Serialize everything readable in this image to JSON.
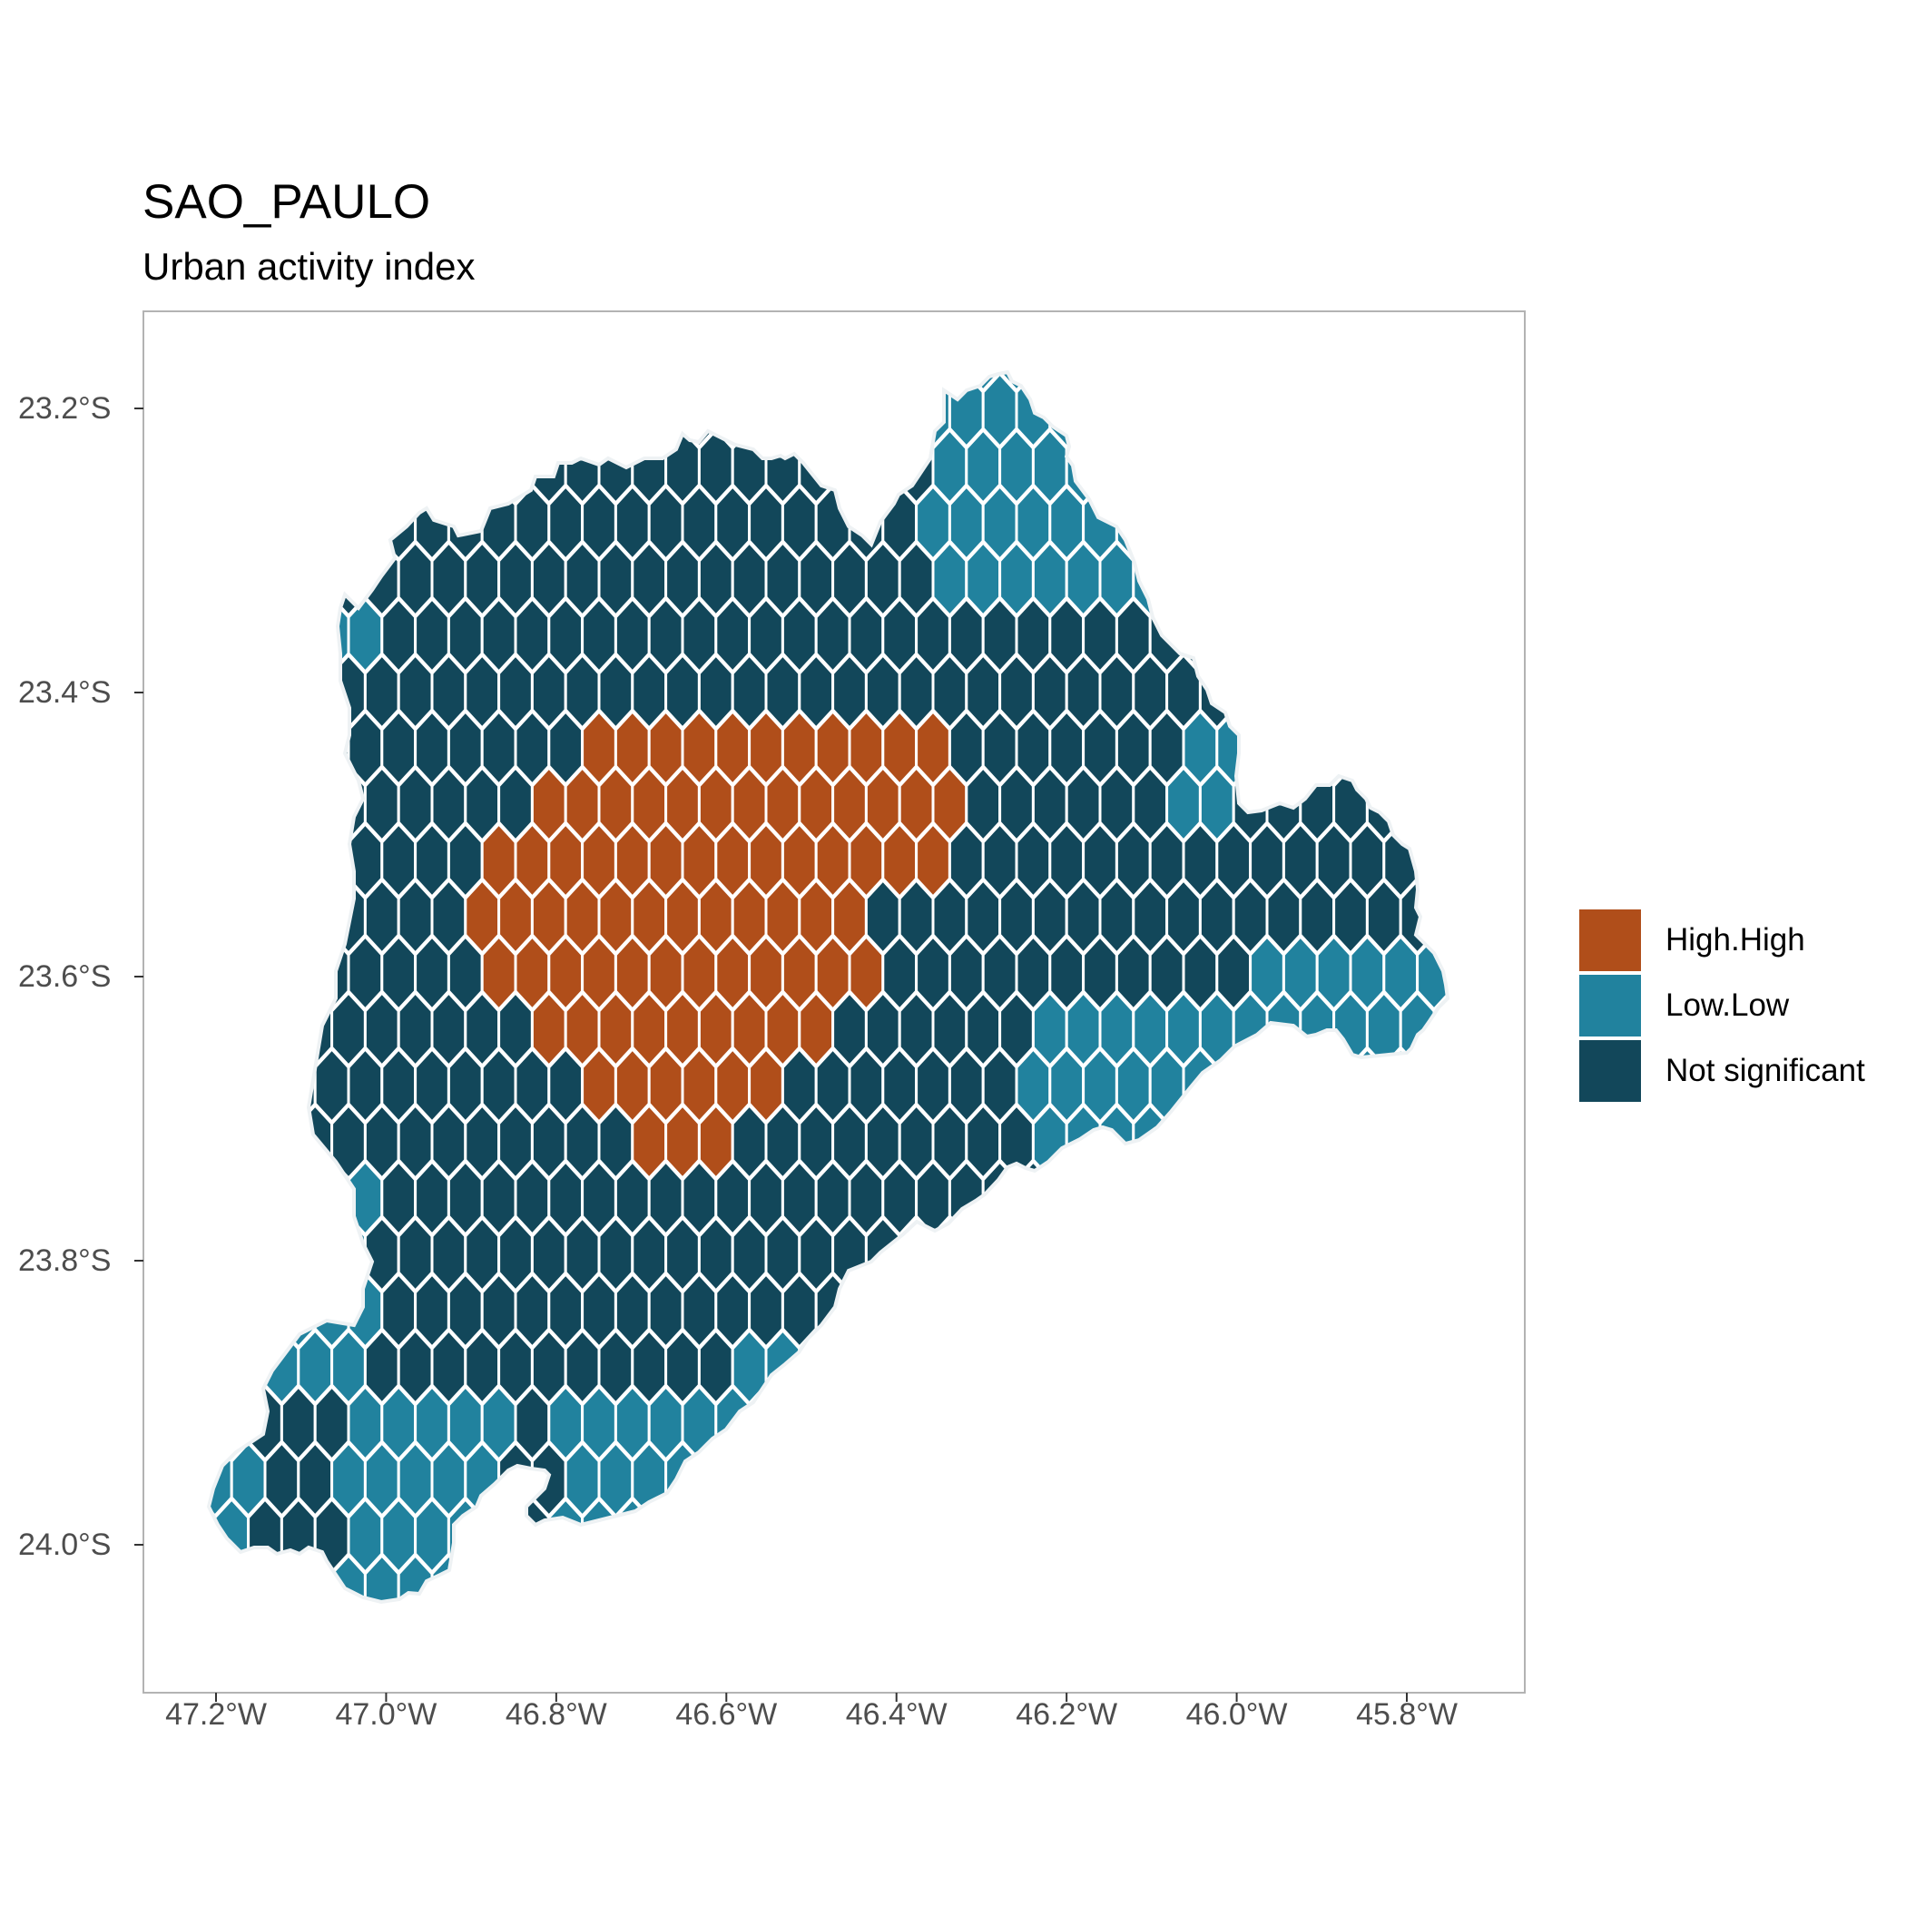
{
  "title": "SAO_PAULO",
  "subtitle": "Urban activity index",
  "axes": {
    "y_ticks": [
      {
        "label": "23.2°S",
        "value": 23.2
      },
      {
        "label": "23.4°S",
        "value": 23.4
      },
      {
        "label": "23.6°S",
        "value": 23.6
      },
      {
        "label": "23.8°S",
        "value": 23.8
      },
      {
        "label": "24.0°S",
        "value": 24.0
      }
    ],
    "x_ticks": [
      {
        "label": "47.2°W",
        "value": 47.2
      },
      {
        "label": "47.0°W",
        "value": 47.0
      },
      {
        "label": "46.8°W",
        "value": 46.8
      },
      {
        "label": "46.6°W",
        "value": 46.6
      },
      {
        "label": "46.4°W",
        "value": 46.4
      },
      {
        "label": "46.2°W",
        "value": 46.2
      },
      {
        "label": "46.0°W",
        "value": 46.0
      },
      {
        "label": "45.8°W",
        "value": 45.8
      }
    ]
  },
  "legend": [
    {
      "label": "High.High",
      "color": "#b04e1a"
    },
    {
      "label": "Low.Low",
      "color": "#21829e"
    },
    {
      "label": "Not significant",
      "color": "#12475a"
    }
  ],
  "colors": {
    "cell_border": "#ffffff",
    "panel_border": "#b3b3b3",
    "background": "#ffffff"
  }
}
